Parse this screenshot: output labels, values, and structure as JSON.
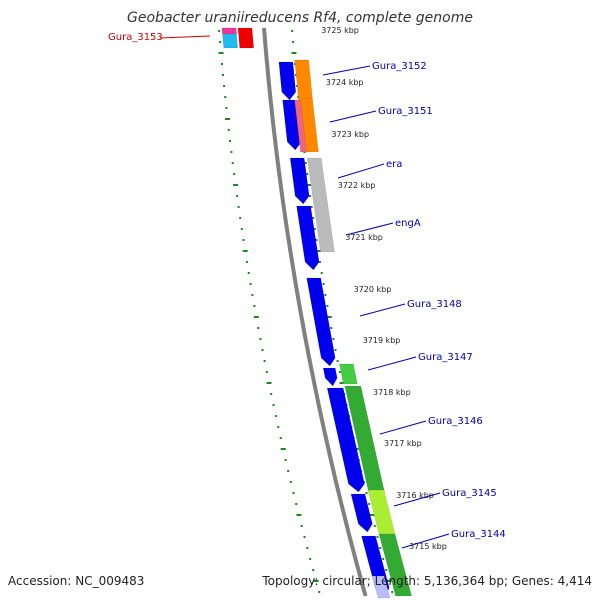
{
  "title": "Geobacter uraniireducens Rf4, complete genome",
  "accession": "Accession: NC_009483",
  "summary": "Topology: circular; Length: 5,136,364 bp; Genes: 4,414",
  "colors": {
    "backbone": "#808080",
    "forward_gene": "#0000ee",
    "gc_skew": "#1a8a1a",
    "label": "#0000aa",
    "highlight_label": "#cc0000"
  },
  "kbp_ticks": [
    "3725 kbp",
    "3724 kbp",
    "3723 kbp",
    "3722 kbp",
    "3721 kbp",
    "3720 kbp",
    "3719 kbp",
    "3718 kbp",
    "3717 kbp",
    "3716 kbp",
    "3715 kbp"
  ],
  "gene_labels": [
    {
      "name": "Gura_3153",
      "highlight": true
    },
    {
      "name": "Gura_3152",
      "highlight": false
    },
    {
      "name": "Gura_3151",
      "highlight": false
    },
    {
      "name": "era",
      "highlight": false
    },
    {
      "name": "engA",
      "highlight": false
    },
    {
      "name": "Gura_3148",
      "highlight": false
    },
    {
      "name": "Gura_3147",
      "highlight": false
    },
    {
      "name": "Gura_3146",
      "highlight": false
    },
    {
      "name": "Gura_3145",
      "highlight": false
    },
    {
      "name": "Gura_3144",
      "highlight": false
    }
  ]
}
